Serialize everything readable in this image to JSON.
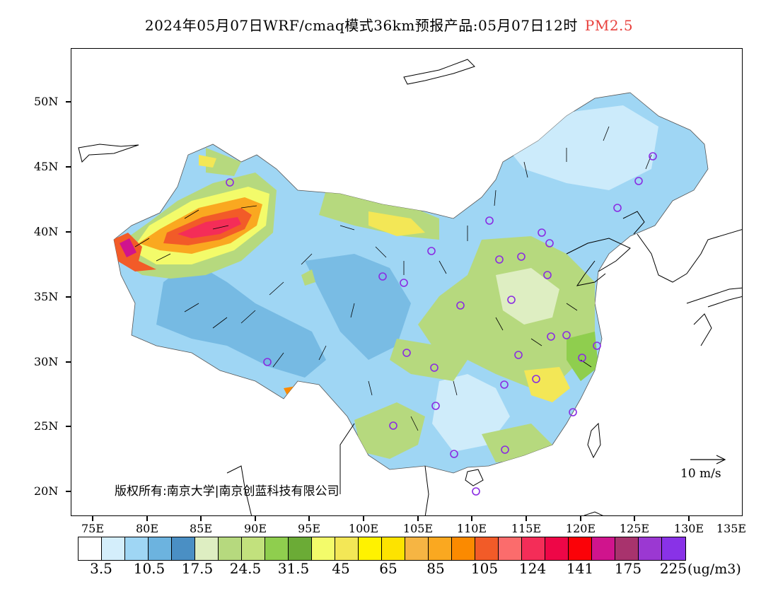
{
  "title": {
    "main": "2024年05月07日WRF/cmaq模式36km预报产品:05月07日12时",
    "variable": "PM2.5"
  },
  "map": {
    "lat_labels": [
      "50N",
      "45N",
      "40N",
      "35N",
      "30N",
      "25N",
      "20N"
    ],
    "lon_labels": [
      "75E",
      "80E",
      "85E",
      "90E",
      "95E",
      "100E",
      "105E",
      "110E",
      "115E",
      "120E",
      "125E",
      "130E",
      "135E"
    ],
    "copyright": "版权所有:南京大学|南京创蓝科技有限公司",
    "wind_reference": "10 m/s",
    "colors": {
      "background": "#ffffff",
      "frame": "#000000",
      "station_marker": "#8a2be2"
    }
  },
  "colorbar": {
    "colors": [
      "#ffffff",
      "#d4eefb",
      "#9fd6f4",
      "#6cb3df",
      "#4a8fc4",
      "#deeec2",
      "#b6d97e",
      "#c2e17d",
      "#8fce4e",
      "#6bab36",
      "#f3fb6a",
      "#f3e756",
      "#fff200",
      "#fde300",
      "#f6b543",
      "#faa820",
      "#fb8a00",
      "#f25b28",
      "#fb6c6c",
      "#f42d58",
      "#ee0647",
      "#fb0208",
      "#d0148d",
      "#a8336d",
      "#9b38d2",
      "#8932e7"
    ],
    "labels": [
      "3.5",
      "10.5",
      "17.5",
      "24.5",
      "31.5",
      "45",
      "65",
      "85",
      "105",
      "124",
      "141",
      "175",
      "225"
    ],
    "unit": "(ug/m3)"
  }
}
